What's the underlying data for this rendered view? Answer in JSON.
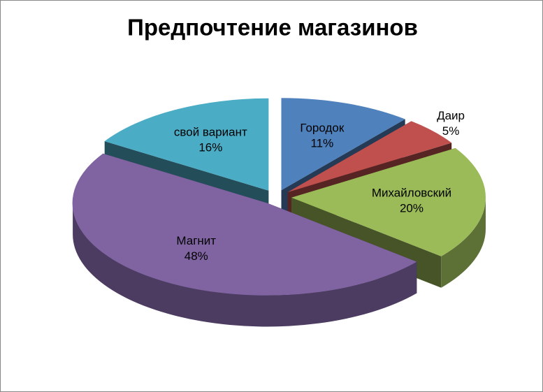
{
  "chart_data": {
    "type": "pie3d",
    "title": "Предпочтение магазинов",
    "categories": [
      "Городок",
      "Даир",
      "Михайловский",
      "Магнит",
      "свой вариант"
    ],
    "values": [
      11,
      5,
      20,
      48,
      16
    ],
    "value_labels": [
      "11%",
      "5%",
      "20%",
      "48%",
      "16%"
    ],
    "colors": [
      "#4f81bd",
      "#c0504d",
      "#9bbb59",
      "#8064a2",
      "#4bacc6"
    ]
  }
}
